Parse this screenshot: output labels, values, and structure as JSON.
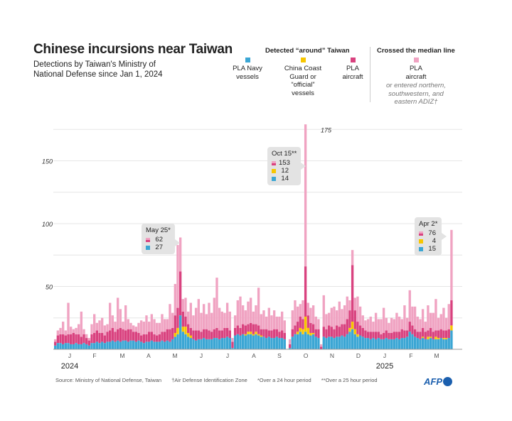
{
  "title": "Chinese incursions near Taiwan",
  "subtitle": "Detections by Taiwan's Ministry of National Defense since Jan 1, 2024",
  "legend": {
    "group_around": "Detected “around” Taiwan",
    "group_crossed": "Crossed the median line",
    "navy": "PLA Navy vessels",
    "coastguard": "China Coast Guard or “official” vessels",
    "aircraft": "PLA aircraft",
    "crossed": "PLA aircraft",
    "crossed_note": "or entered northern, southwestern, and eastern ADIZ†"
  },
  "colors": {
    "navy": "#3ba6d4",
    "coastguard": "#f7c600",
    "aircraft": "#d9427f",
    "crossed": "#f0a3c2"
  },
  "annotations": [
    {
      "date": "May 25*",
      "aircraft": "62",
      "coastguard": null,
      "navy": "27"
    },
    {
      "date": "Oct 15**",
      "aircraft": "153",
      "coastguard": "12",
      "navy": "14"
    },
    {
      "date": "Apr 2*",
      "aircraft": "76",
      "coastguard": "4",
      "navy": "15"
    }
  ],
  "footer": {
    "source": "Source: Ministry of National Defense, Taiwan",
    "adiz": "†Air Defense Identification Zone",
    "note1": "*Over a 24 hour period",
    "note2": "**Over a 25 hour period",
    "logo": "AFP"
  },
  "chart_data": {
    "type": "bar",
    "stacked": true,
    "title": "Chinese incursions near Taiwan",
    "x_unit": "3-day bins from Jan 1, 2024 to Apr 2, 2025 (peak days shown at their values)",
    "ylim": [
      0,
      175
    ],
    "y_gridlines": [
      25,
      50,
      75,
      100,
      125,
      150,
      175
    ],
    "y_ticks": [
      "50",
      "100",
      "150",
      "175"
    ],
    "y_tick_values": [
      50,
      100,
      150,
      175
    ],
    "x_ticks": [
      "J",
      "F",
      "M",
      "A",
      "M",
      "J",
      "J",
      "A",
      "S",
      "O",
      "N",
      "D",
      "J",
      "F",
      "M"
    ],
    "years": [
      "2024",
      "2025"
    ],
    "series": [
      {
        "name": "PLA Navy vessels",
        "key": "navy",
        "values": [
          3,
          5,
          5,
          4,
          5,
          5,
          4,
          4,
          5,
          4,
          4,
          5,
          4,
          3,
          5,
          5,
          6,
          5,
          6,
          5,
          6,
          6,
          7,
          6,
          7,
          6,
          7,
          7,
          6,
          7,
          7,
          6,
          7,
          6,
          5,
          6,
          6,
          7,
          6,
          6,
          6,
          7,
          6,
          7,
          6,
          8,
          10,
          12,
          27,
          14,
          12,
          10,
          9,
          8,
          7,
          8,
          8,
          9,
          8,
          8,
          8,
          9,
          9,
          8,
          9,
          9,
          10,
          9,
          1,
          11,
          12,
          11,
          12,
          11,
          12,
          12,
          11,
          12,
          11,
          10,
          10,
          9,
          10,
          9,
          9,
          10,
          9,
          9,
          8,
          0,
          1,
          10,
          12,
          12,
          14,
          12,
          14,
          12,
          11,
          12,
          10,
          9,
          0,
          10,
          9,
          10,
          10,
          9,
          10,
          10,
          11,
          10,
          12,
          14,
          16,
          12,
          10,
          11,
          10,
          9,
          9,
          8,
          9,
          8,
          9,
          8,
          8,
          9,
          8,
          8,
          8,
          9,
          8,
          9,
          9,
          10,
          14,
          12,
          10,
          9,
          8,
          9,
          8,
          8,
          9,
          8,
          8,
          8,
          9,
          8,
          8,
          9,
          15
        ]
      },
      {
        "name": "China Coast Guard or official vessels",
        "key": "coastguard",
        "values": [
          0,
          0,
          0,
          0,
          0,
          0,
          0,
          0,
          0,
          0,
          0,
          0,
          0,
          0,
          0,
          0,
          0,
          0,
          0,
          0,
          0,
          0,
          0,
          0,
          0,
          0,
          0,
          0,
          0,
          0,
          0,
          0,
          0,
          0,
          0,
          0,
          0,
          0,
          0,
          0,
          0,
          0,
          0,
          0,
          0,
          0,
          3,
          5,
          0,
          4,
          6,
          3,
          2,
          0,
          0,
          0,
          0,
          0,
          0,
          0,
          0,
          0,
          0,
          0,
          0,
          0,
          0,
          0,
          0,
          0,
          0,
          0,
          0,
          1,
          2,
          2,
          1,
          2,
          1,
          1,
          0,
          0,
          0,
          0,
          0,
          0,
          0,
          0,
          0,
          0,
          0,
          0,
          0,
          2,
          3,
          4,
          12,
          5,
          2,
          1,
          0,
          0,
          0,
          0,
          0,
          0,
          0,
          0,
          0,
          0,
          0,
          0,
          0,
          3,
          6,
          4,
          2,
          0,
          0,
          0,
          0,
          0,
          0,
          0,
          0,
          0,
          0,
          0,
          0,
          0,
          0,
          0,
          0,
          0,
          0,
          0,
          0,
          0,
          0,
          0,
          0,
          1,
          0,
          2,
          1,
          0,
          2,
          1,
          0,
          1,
          1,
          0,
          4
        ]
      },
      {
        "name": "PLA aircraft (around)",
        "key": "aircraft",
        "values": [
          3,
          6,
          7,
          8,
          6,
          7,
          8,
          9,
          7,
          8,
          6,
          7,
          5,
          4,
          7,
          8,
          9,
          8,
          7,
          6,
          8,
          9,
          10,
          8,
          9,
          11,
          9,
          8,
          10,
          9,
          7,
          8,
          6,
          5,
          7,
          6,
          8,
          7,
          6,
          5,
          6,
          7,
          8,
          9,
          10,
          9,
          14,
          16,
          35,
          12,
          8,
          7,
          6,
          7,
          8,
          7,
          6,
          7,
          8,
          7,
          6,
          7,
          8,
          7,
          6,
          8,
          7,
          6,
          5,
          6,
          7,
          6,
          8,
          7,
          6,
          7,
          8,
          6,
          7,
          5,
          6,
          7,
          5,
          6,
          7,
          6,
          5,
          6,
          5,
          0,
          3,
          6,
          7,
          8,
          9,
          8,
          40,
          10,
          8,
          7,
          6,
          7,
          2,
          8,
          7,
          9,
          8,
          7,
          9,
          8,
          9,
          10,
          12,
          14,
          45,
          15,
          10,
          8,
          7,
          6,
          5,
          6,
          5,
          6,
          5,
          4,
          5,
          6,
          5,
          5,
          6,
          5,
          6,
          7,
          6,
          5,
          8,
          7,
          6,
          5,
          6,
          7,
          6,
          5,
          7,
          6,
          5,
          6,
          7,
          6,
          6,
          7,
          20
        ]
      },
      {
        "name": "PLA aircraft crossed median line / entered ADIZ",
        "key": "crossed",
        "values": [
          2,
          4,
          5,
          10,
          4,
          25,
          6,
          3,
          5,
          8,
          20,
          4,
          3,
          2,
          8,
          15,
          6,
          10,
          12,
          8,
          6,
          22,
          10,
          8,
          25,
          15,
          6,
          20,
          8,
          5,
          5,
          4,
          8,
          12,
          10,
          15,
          8,
          14,
          12,
          10,
          9,
          14,
          10,
          8,
          20,
          12,
          25,
          50,
          27,
          10,
          15,
          10,
          20,
          12,
          18,
          25,
          15,
          20,
          12,
          22,
          15,
          25,
          40,
          18,
          15,
          12,
          20,
          15,
          3,
          10,
          20,
          25,
          15,
          12,
          18,
          20,
          10,
          15,
          30,
          12,
          15,
          10,
          18,
          12,
          15,
          10,
          12,
          15,
          10,
          0,
          4,
          15,
          20,
          12,
          10,
          15,
          113,
          10,
          12,
          15,
          10,
          8,
          2,
          25,
          12,
          10,
          15,
          18,
          12,
          20,
          12,
          15,
          18,
          8,
          12,
          10,
          20,
          15,
          10,
          8,
          10,
          12,
          8,
          15,
          10,
          12,
          20,
          10,
          8,
          12,
          10,
          15,
          12,
          8,
          20,
          10,
          25,
          15,
          18,
          12,
          10,
          15,
          8,
          20,
          12,
          15,
          25,
          10,
          12,
          18,
          10,
          20,
          56
        ]
      }
    ]
  }
}
